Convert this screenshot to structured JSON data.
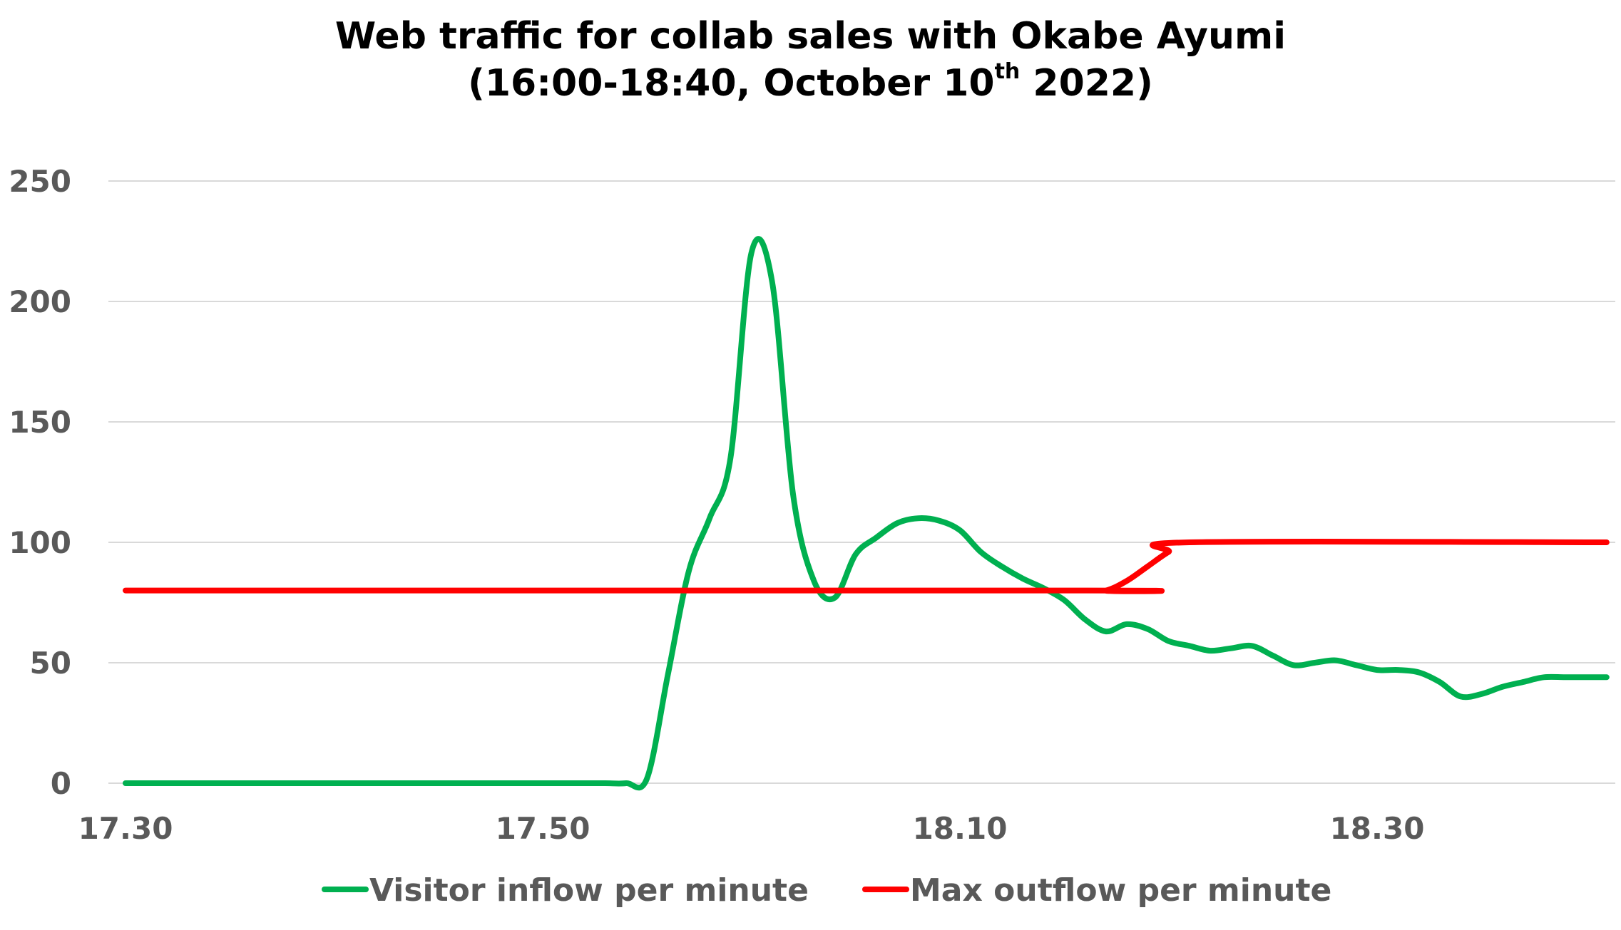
{
  "chart_data": {
    "type": "line",
    "title": {
      "line1": "Web traffic for collab sales with Okabe Ayumi",
      "line2_prefix": "(16:00-18:40, October 10",
      "line2_sup": "th",
      "line2_suffix": " 2022)"
    },
    "xlabel": "",
    "ylabel": "",
    "ylim": [
      0,
      250
    ],
    "y_ticks": [
      "0",
      "50",
      "100",
      "150",
      "200",
      "250"
    ],
    "x_range": [
      "17:30",
      "18:41"
    ],
    "x_ticks": [
      {
        "time": "17:30",
        "label": "17.30"
      },
      {
        "time": "17:50",
        "label": "17.50"
      },
      {
        "time": "18:10",
        "label": "18.10"
      },
      {
        "time": "18:30",
        "label": "18.30"
      }
    ],
    "grid": "horizontal",
    "legend": "bottom",
    "series": [
      {
        "name": "Visitor inflow per minute",
        "color": "#00B050",
        "x": [
          "17:30",
          "17:32",
          "17:34",
          "17:36",
          "17:38",
          "17:40",
          "17:42",
          "17:44",
          "17:46",
          "17:48",
          "17:50",
          "17:52",
          "17:53",
          "17:54",
          "17:55",
          "17:56",
          "17:57",
          "17:58",
          "17:59",
          "18:00",
          "18:01",
          "18:02",
          "18:03",
          "18:04",
          "18:05",
          "18:06",
          "18:07",
          "18:08",
          "18:09",
          "18:10",
          "18:11",
          "18:12",
          "18:13",
          "18:14",
          "18:15",
          "18:16",
          "18:17",
          "18:18",
          "18:19",
          "18:20",
          "18:21",
          "18:22",
          "18:23",
          "18:24",
          "18:25",
          "18:26",
          "18:27",
          "18:28",
          "18:29",
          "18:30",
          "18:31",
          "18:32",
          "18:33",
          "18:34",
          "18:35",
          "18:36",
          "18:37",
          "18:38",
          "18:39",
          "18:40",
          "18:41"
        ],
        "values": [
          0,
          0,
          0,
          0,
          0,
          0,
          0,
          0,
          0,
          0,
          0,
          0,
          0,
          0,
          2,
          45,
          88,
          110,
          135,
          220,
          208,
          120,
          84,
          77,
          95,
          102,
          108,
          110,
          109,
          105,
          96,
          90,
          85,
          81,
          76,
          68,
          63,
          66,
          64,
          59,
          57,
          55,
          56,
          57,
          53,
          49,
          50,
          51,
          49,
          47,
          47,
          46,
          42,
          36,
          37,
          40,
          42,
          44,
          44,
          44,
          44
        ]
      },
      {
        "name": "Max outflow per minute",
        "color": "#FF0000",
        "x": [
          "17:30",
          "18:16",
          "18:17",
          "18:18",
          "18:19",
          "18:20",
          "18:21",
          "18:41"
        ],
        "values": [
          80,
          80,
          80,
          84,
          90,
          96,
          100,
          100
        ]
      }
    ]
  }
}
